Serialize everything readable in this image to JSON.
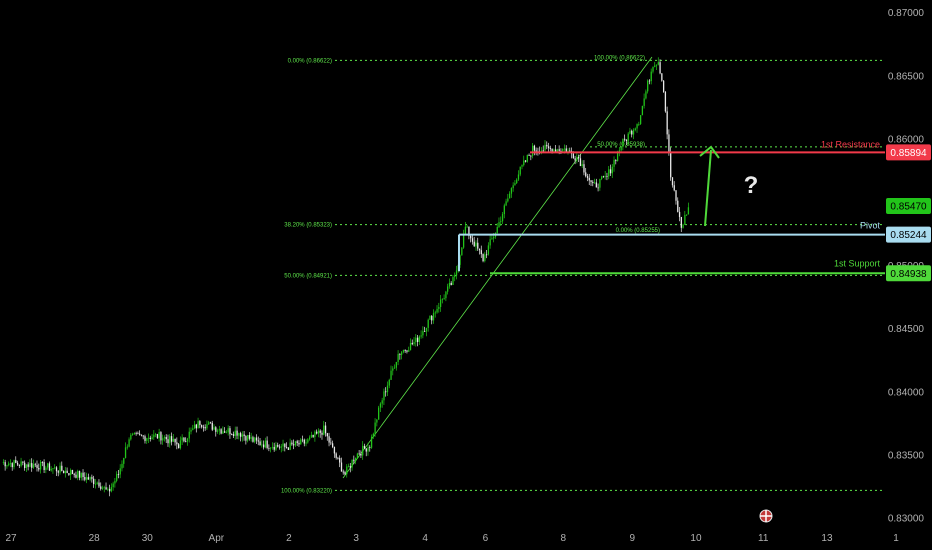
{
  "chart_data": {
    "type": "candlestick",
    "colors": {
      "background": "#000000",
      "bull": "#22c51a",
      "bear": "#e9e9e9",
      "fib": "#5ee64a",
      "resistance": "#f23a4a",
      "pivot": "#a9dcf0",
      "support": "#4fd93a",
      "current_price": "#22c51a",
      "axis_text": "#b2b2b2"
    },
    "y_axis": {
      "range": [
        0.8297,
        0.871
      ],
      "ticks": [
        "0.87000",
        "0.86500",
        "0.86000",
        "0.85500",
        "0.85000",
        "0.84500",
        "0.84000",
        "0.83500",
        "0.83000"
      ],
      "tick_values": [
        0.87,
        0.865,
        0.86,
        0.855,
        0.85,
        0.845,
        0.84,
        0.835,
        0.83
      ]
    },
    "x_axis": {
      "ticks": [
        "27",
        "28",
        "30",
        "Apr",
        "2",
        "3",
        "4",
        "6",
        "8",
        "9",
        "10",
        "11",
        "13",
        "1"
      ],
      "tick_bar_index": [
        0,
        47,
        77,
        116,
        157,
        195,
        234,
        268,
        312,
        351,
        387,
        425,
        461,
        500
      ]
    },
    "fib_levels": [
      {
        "label": "0.00% (0.86622)",
        "value": 0.86622
      },
      {
        "label": "38.20% (0.85323)",
        "value": 0.85323
      },
      {
        "label": "50.00% (0.84921)",
        "value": 0.84921
      },
      {
        "label": "100.00% (0.83220)",
        "value": 0.8322
      }
    ],
    "fib_levels_2": [
      {
        "label": "100.00% (0.86622)",
        "value": 0.86622
      },
      {
        "label": "50.00% (0.85938)",
        "value": 0.85938
      },
      {
        "label": "0.00% (0.85255)",
        "value": 0.85255
      }
    ],
    "levels": [
      {
        "name": "1st Resistance",
        "value": 0.85894,
        "price_label": "0.85894"
      },
      {
        "name": "Pivot",
        "value": 0.85244,
        "price_label": "0.85244"
      },
      {
        "name": "1st Support",
        "value": 0.84938,
        "price_label": "0.84938"
      }
    ],
    "current_price": {
      "value": 0.8547,
      "label": "0.85470"
    },
    "annotation": "?",
    "waypoints": [
      [
        0,
        0.8344
      ],
      [
        20,
        0.8342
      ],
      [
        40,
        0.8336
      ],
      [
        55,
        0.8328
      ],
      [
        60,
        0.832
      ],
      [
        66,
        0.8335
      ],
      [
        72,
        0.8364
      ],
      [
        90,
        0.8365
      ],
      [
        100,
        0.8358
      ],
      [
        112,
        0.8376
      ],
      [
        124,
        0.837
      ],
      [
        134,
        0.8368
      ],
      [
        144,
        0.836
      ],
      [
        160,
        0.8356
      ],
      [
        172,
        0.836
      ],
      [
        182,
        0.837
      ],
      [
        190,
        0.8345
      ],
      [
        194,
        0.8335
      ],
      [
        200,
        0.835
      ],
      [
        208,
        0.8358
      ],
      [
        214,
        0.839
      ],
      [
        224,
        0.843
      ],
      [
        234,
        0.844
      ],
      [
        244,
        0.8462
      ],
      [
        256,
        0.849
      ],
      [
        262,
        0.853
      ],
      [
        272,
        0.8505
      ],
      [
        280,
        0.853
      ],
      [
        290,
        0.8568
      ],
      [
        300,
        0.8592
      ],
      [
        318,
        0.8592
      ],
      [
        326,
        0.8585
      ],
      [
        334,
        0.8562
      ],
      [
        342,
        0.857
      ],
      [
        350,
        0.8595
      ],
      [
        360,
        0.8615
      ],
      [
        368,
        0.866
      ],
      [
        371,
        0.8662
      ],
      [
        374,
        0.864
      ],
      [
        378,
        0.857
      ],
      [
        384,
        0.853
      ],
      [
        388,
        0.8546
      ]
    ]
  }
}
